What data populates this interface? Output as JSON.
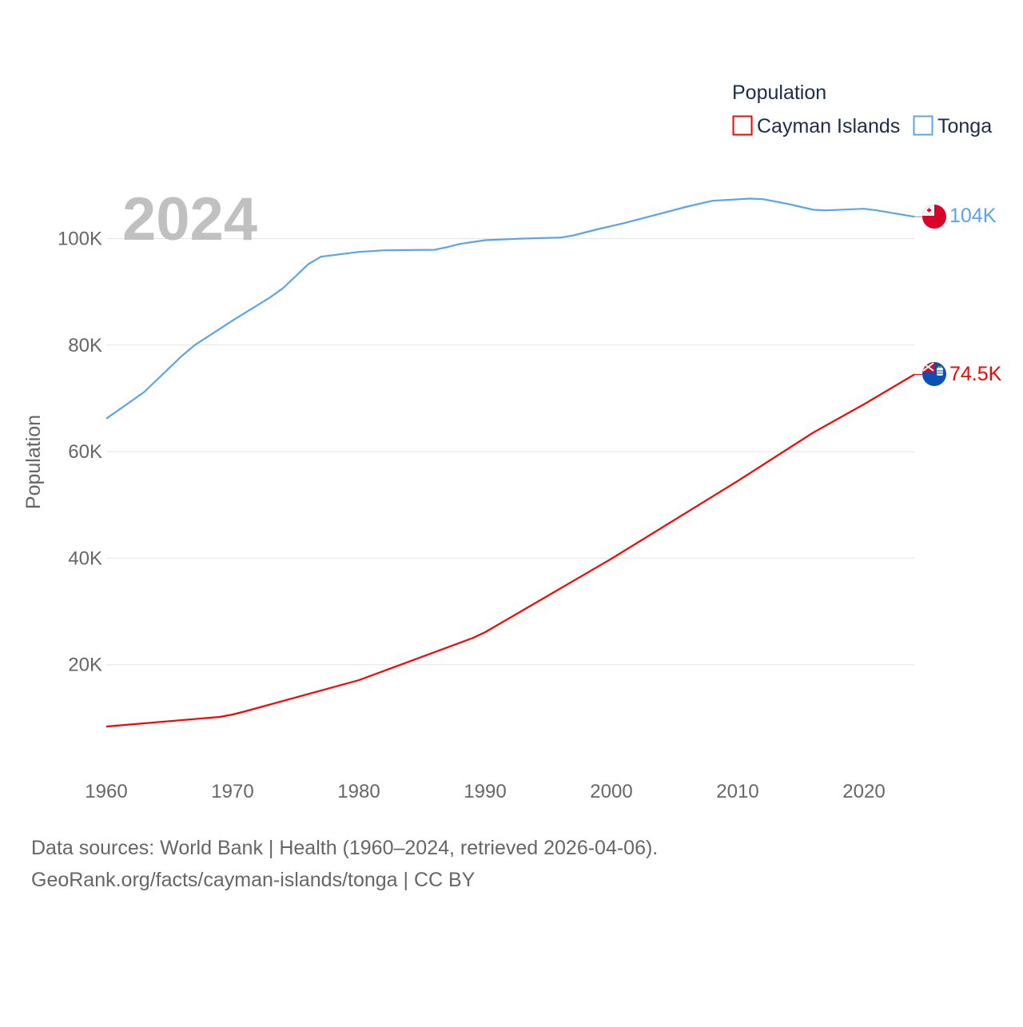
{
  "chart_data": {
    "type": "line",
    "title": "",
    "ylabel": "Population",
    "xlabel": "",
    "year_label": "2024",
    "xlim": [
      1960,
      2024
    ],
    "ylim": [
      0,
      110000
    ],
    "x_ticks": [
      1960,
      1970,
      1980,
      1990,
      2000,
      2010,
      2020
    ],
    "x_tick_labels": [
      "1960",
      "1970",
      "1980",
      "1990",
      "2000",
      "2010",
      "2020"
    ],
    "y_ticks": [
      20000,
      40000,
      60000,
      80000,
      100000
    ],
    "y_tick_labels": [
      "20K",
      "40K",
      "60K",
      "80K",
      "100K"
    ],
    "grid": true,
    "legend": {
      "title": "Population",
      "position": "top-right"
    },
    "series": [
      {
        "name": "Cayman Islands",
        "color": "#ff0000",
        "end_label": "74.5K",
        "flag": "cayman-islands-flag",
        "x": [
          1960,
          1969,
          1970,
          1971,
          1980,
          1989,
          1990,
          2000,
          2010,
          2016,
          2020,
          2024
        ],
        "y": [
          8400,
          10200,
          10650,
          11250,
          17100,
          25000,
          26100,
          39900,
          54500,
          63600,
          68900,
          74500
        ]
      },
      {
        "name": "Tonga",
        "color": "#5ba4ea",
        "end_label": "104K",
        "flag": "tonga-flag",
        "x": [
          1960,
          1963,
          1966,
          1967,
          1970,
          1973,
          1974,
          1976,
          1977,
          1980,
          1982,
          1986,
          1987,
          1988,
          1990,
          1993,
          1996,
          1997,
          1999,
          2001,
          2006,
          2008,
          2011,
          2012,
          2014,
          2016,
          2017,
          2020,
          2021,
          2024
        ],
        "y": [
          66200,
          71200,
          78000,
          80000,
          84600,
          89000,
          90700,
          95200,
          96600,
          97500,
          97800,
          97900,
          98400,
          99000,
          99700,
          100000,
          100200,
          100600,
          101800,
          102900,
          106000,
          107100,
          107500,
          107400,
          106500,
          105400,
          105300,
          105600,
          105300,
          104100
        ]
      }
    ]
  },
  "footer": {
    "line1": "Data sources: World Bank | Health (1960–2024, retrieved 2026-04-06).",
    "line2": "GeoRank.org/facts/cayman-islands/tonga | CC BY"
  }
}
